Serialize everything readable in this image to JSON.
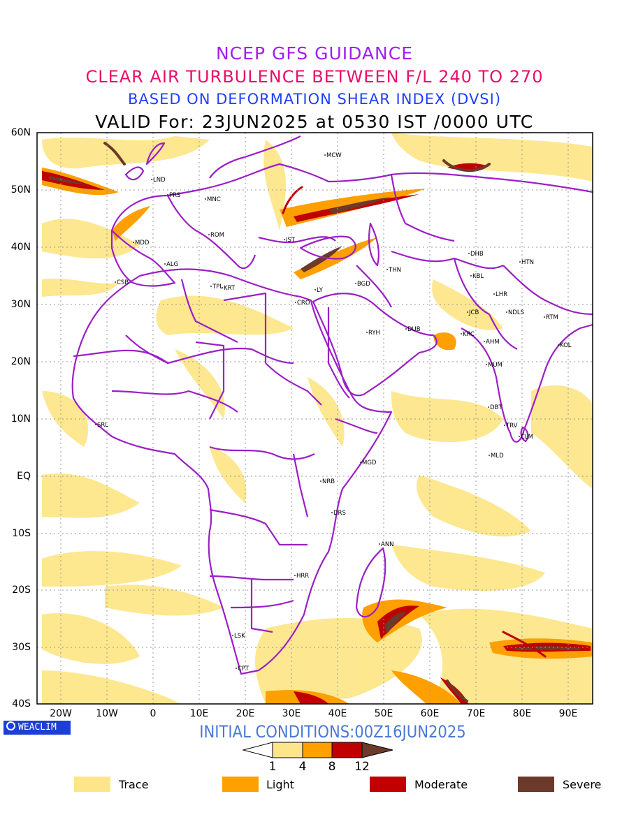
{
  "titles": {
    "line1": "NCEP GFS GUIDANCE",
    "line2": "CLEAR AIR TURBULENCE BETWEEN F/L 240 TO 270",
    "line3": "BASED ON DEFORMATION SHEAR INDEX (DVSI)",
    "line4": "VALID For: 23JUN2025 at 0530 IST /0000 UTC"
  },
  "axes": {
    "lat_labels": [
      "60N",
      "50N",
      "40N",
      "30N",
      "20N",
      "10N",
      "EQ",
      "10S",
      "20S",
      "30S",
      "40S"
    ],
    "lon_labels": [
      "20W",
      "10W",
      "0",
      "10E",
      "20E",
      "30E",
      "40E",
      "50E",
      "60E",
      "70E",
      "80E",
      "90E"
    ]
  },
  "stations": [
    "MCW",
    "LND",
    "PRS",
    "MNC",
    "ROM",
    "MDD",
    "IST",
    "ALG",
    "CSB",
    "TPL",
    "KRT",
    "CRO",
    "LY",
    "BGD",
    "THN",
    "DHB",
    "KBL",
    "HTN",
    "LHR",
    "NDLS",
    "RTM",
    "JCB",
    "RYH",
    "DUB",
    "KRC",
    "AHM",
    "KOL",
    "MUM",
    "DBT",
    "TRV",
    "CLM",
    "SRL",
    "MLD",
    "MGD",
    "NRB",
    "DRS",
    "ANN",
    "HRR",
    "LSK",
    "CPT"
  ],
  "brand": "WEACLIM",
  "initial_conditions": "INITIAL CONDITIONS:00Z16JUN2025",
  "colorbar": {
    "ticks": [
      "1",
      "4",
      "8",
      "12"
    ]
  },
  "legend": [
    {
      "label": "Trace",
      "color": "#fde68a"
    },
    {
      "label": "Light",
      "color": "#ff9f00"
    },
    {
      "label": "Moderate",
      "color": "#c00000"
    },
    {
      "label": "Severe",
      "color": "#6b3a2a"
    }
  ],
  "colors": {
    "borders": "#9b1fc6",
    "grid": "#9a9a9a"
  }
}
